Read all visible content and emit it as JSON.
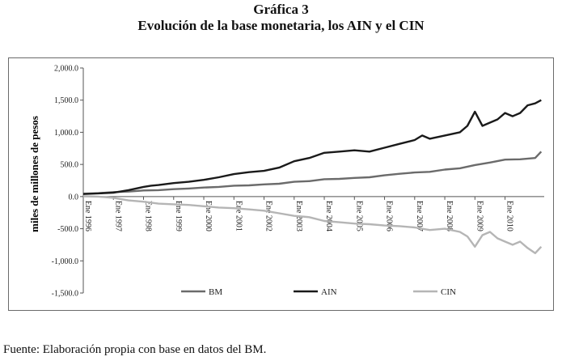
{
  "figure": {
    "title": "Gráfica 3",
    "subtitle": "Evolución de la base monetaria, los AIN y el CIN",
    "source": "Fuente: Elaboración propia con base en datos del BM."
  },
  "colors": {
    "BM": "#6b6b6b",
    "AIN": "#1a1a1a",
    "CIN": "#b5b5b5"
  },
  "chart_data": {
    "type": "line",
    "title": "Evolución de la base monetaria, los AIN y el CIN",
    "xlabel": "",
    "ylabel": "miles de millones de pesos",
    "ylim": [
      -1500,
      2000
    ],
    "y_ticks": [
      2000,
      1500,
      1000,
      500,
      0,
      -500,
      -1000,
      -1500
    ],
    "y_tick_labels": [
      "2,000.0",
      "1,500.0",
      "1,000.0",
      "500.0",
      "0.0",
      "-500.0",
      "-1,000.0",
      "-1,500.0"
    ],
    "x_range": [
      1996,
      2011.3
    ],
    "x_ticks": [
      1996,
      1997,
      1998,
      1999,
      2000,
      2001,
      2002,
      2003,
      2004,
      2005,
      2006,
      2007,
      2008,
      2009,
      2010
    ],
    "x_tick_labels": [
      "Ene 1996",
      "Ene 1997",
      "Ene 1998",
      "Ene 1999",
      "Ene 2000",
      "Ene 2001",
      "Ene 2002",
      "Ene 2003",
      "Ene 2004",
      "Ene 2005",
      "Ene 2006",
      "Ene 2007",
      "Ene 2008",
      "Ene 2009",
      "Ene 2010"
    ],
    "legend": {
      "position": "bottom"
    },
    "grid": false,
    "series": [
      {
        "name": "BM",
        "x": [
          1996,
          1996.5,
          1997,
          1997.5,
          1998,
          1998.5,
          1999,
          1999.5,
          2000,
          2000.5,
          2001,
          2001.5,
          2002,
          2002.5,
          2003,
          2003.5,
          2004,
          2004.5,
          2005,
          2005.5,
          2006,
          2006.5,
          2007,
          2007.5,
          2008,
          2008.5,
          2009,
          2009.5,
          2010,
          2010.5,
          2011,
          2011.2
        ],
        "values": [
          45,
          52,
          70,
          78,
          95,
          100,
          115,
          125,
          140,
          150,
          170,
          175,
          190,
          200,
          230,
          240,
          270,
          275,
          290,
          300,
          330,
          355,
          375,
          385,
          420,
          440,
          490,
          530,
          575,
          580,
          600,
          700
        ]
      },
      {
        "name": "AIN",
        "x": [
          1996,
          1996.5,
          1997,
          1997.5,
          1998,
          1998.25,
          1998.5,
          1999,
          1999.5,
          2000,
          2000.5,
          2001,
          2001.5,
          2002,
          2002.5,
          2003,
          2003.5,
          2004,
          2004.5,
          2005,
          2005.5,
          2006,
          2006.5,
          2007,
          2007.25,
          2007.5,
          2008,
          2008.5,
          2008.75,
          2009,
          2009.25,
          2009.5,
          2009.75,
          2010,
          2010.25,
          2010.5,
          2010.75,
          2011,
          2011.2
        ],
        "values": [
          40,
          50,
          60,
          100,
          150,
          170,
          180,
          210,
          230,
          260,
          300,
          350,
          380,
          400,
          450,
          550,
          600,
          680,
          700,
          720,
          700,
          760,
          820,
          880,
          950,
          900,
          950,
          1000,
          1100,
          1320,
          1100,
          1150,
          1200,
          1300,
          1250,
          1300,
          1420,
          1450,
          1500
        ]
      },
      {
        "name": "CIN",
        "x": [
          1996,
          1996.5,
          1997,
          1997.5,
          1998,
          1998.5,
          1999,
          1999.5,
          2000,
          2000.5,
          2001,
          2001.5,
          2002,
          2002.5,
          2003,
          2003.5,
          2004,
          2004.5,
          2005,
          2005.5,
          2006,
          2006.5,
          2007,
          2007.5,
          2008,
          2008.5,
          2008.75,
          2009,
          2009.25,
          2009.5,
          2009.75,
          2010,
          2010.25,
          2010.5,
          2010.75,
          2011,
          2011.2
        ],
        "values": [
          5,
          0,
          -20,
          -60,
          -80,
          -110,
          -120,
          -130,
          -150,
          -170,
          -180,
          -200,
          -220,
          -260,
          -300,
          -320,
          -380,
          -400,
          -420,
          -430,
          -450,
          -460,
          -480,
          -520,
          -500,
          -550,
          -620,
          -780,
          -600,
          -550,
          -650,
          -700,
          -750,
          -700,
          -800,
          -880,
          -780
        ]
      }
    ]
  }
}
